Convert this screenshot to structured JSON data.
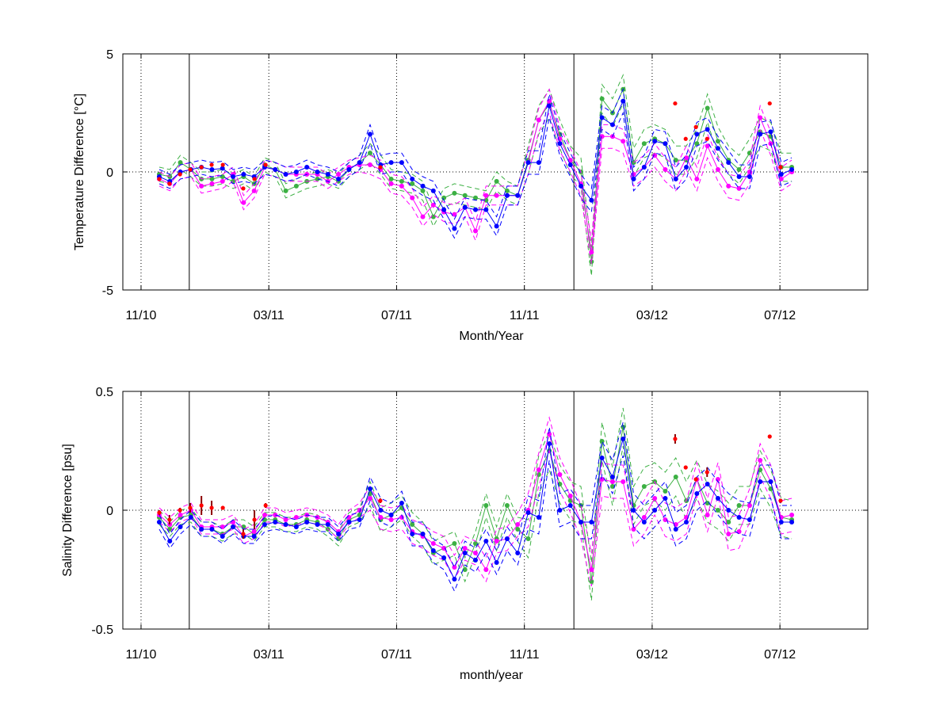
{
  "chart_data": [
    {
      "type": "line",
      "xlabel": "Month/Year",
      "ylabel": "Temperature Difference [°C]",
      "xlim": [
        -0.57,
        22.75
      ],
      "ylim": [
        -5,
        5
      ],
      "xticks": [
        {
          "value": 0,
          "label": "11/10"
        },
        {
          "value": 4,
          "label": "03/11"
        },
        {
          "value": 8,
          "label": "07/11"
        },
        {
          "value": 12,
          "label": "11/11"
        },
        {
          "value": 16,
          "label": "03/12"
        },
        {
          "value": 20,
          "label": "07/12"
        }
      ],
      "yticks": [
        -5,
        0,
        5
      ],
      "grid": true,
      "vlines": [
        1.51,
        13.55
      ],
      "x": [
        0.57,
        0.9,
        1.23,
        1.56,
        1.89,
        2.22,
        2.55,
        2.88,
        3.21,
        3.54,
        3.87,
        4.2,
        4.53,
        4.86,
        5.19,
        5.52,
        5.85,
        6.18,
        6.51,
        6.84,
        7.17,
        7.5,
        7.83,
        8.16,
        8.49,
        8.82,
        9.15,
        9.48,
        9.81,
        10.14,
        10.47,
        10.8,
        11.13,
        11.46,
        11.79,
        12.12,
        12.45,
        12.78,
        13.11,
        13.44,
        13.77,
        14.1,
        14.43,
        14.76,
        15.09,
        15.42,
        15.75,
        16.08,
        16.41,
        16.74,
        17.07,
        17.4,
        17.73,
        18.06,
        18.39,
        18.72,
        19.05,
        19.38,
        19.71,
        20.04,
        20.37
      ],
      "series": [
        {
          "color": "#3cb043",
          "values": [
            -0.1,
            -0.2,
            0.4,
            0.1,
            -0.3,
            -0.3,
            -0.2,
            -0.4,
            -0.2,
            -0.5,
            0.3,
            0.1,
            -0.8,
            -0.6,
            -0.4,
            -0.3,
            -0.2,
            -0.4,
            0.1,
            0.4,
            0.8,
            0.3,
            -0.3,
            -0.4,
            -0.5,
            -0.8,
            -1.9,
            -1.1,
            -0.9,
            -1.0,
            -1.1,
            -1.2,
            -0.4,
            -0.8,
            -1.0,
            0.5,
            2.2,
            2.9,
            1.6,
            0.5,
            0.0,
            -3.8,
            3.1,
            2.5,
            3.5,
            0.4,
            1.2,
            1.4,
            1.2,
            0.5,
            0.5,
            1.2,
            2.7,
            1.3,
            0.5,
            0.1,
            0.8,
            1.7,
            1.5,
            0.2,
            0.2
          ],
          "errors": [
            0.3,
            0.3,
            0.3,
            0.3,
            0.3,
            0.3,
            0.3,
            0.3,
            0.3,
            0.3,
            0.3,
            0.3,
            0.3,
            0.3,
            0.3,
            0.3,
            0.3,
            0.3,
            0.3,
            0.3,
            0.4,
            0.4,
            0.4,
            0.4,
            0.4,
            0.4,
            0.4,
            0.4,
            0.4,
            0.4,
            0.4,
            0.4,
            0.4,
            0.4,
            0.4,
            0.6,
            0.6,
            0.6,
            0.6,
            0.6,
            0.6,
            0.6,
            0.6,
            0.6,
            0.6,
            0.6,
            0.6,
            0.6,
            0.6,
            0.6,
            0.6,
            0.6,
            0.6,
            0.6,
            0.6,
            0.6,
            0.6,
            0.6,
            0.6,
            0.6,
            0.6
          ]
        },
        {
          "color": "#ff00ff",
          "values": [
            -0.3,
            -0.5,
            0.0,
            0.1,
            -0.6,
            -0.5,
            -0.4,
            -0.1,
            -1.3,
            -0.8,
            0.2,
            0.1,
            -0.1,
            -0.1,
            -0.1,
            -0.1,
            -0.4,
            -0.1,
            0.2,
            0.3,
            0.3,
            0.1,
            -0.5,
            -0.6,
            -1.1,
            -1.9,
            -1.4,
            -1.7,
            -1.8,
            -1.5,
            -2.5,
            -1.0,
            -1.0,
            -1.0,
            -1.0,
            0.4,
            2.2,
            3.0,
            1.4,
            0.5,
            -0.5,
            -3.4,
            1.5,
            1.5,
            1.3,
            -0.1,
            0.2,
            0.7,
            0.1,
            -0.3,
            0.6,
            -0.3,
            1.1,
            0.1,
            -0.6,
            -0.7,
            0.0,
            2.3,
            1.2,
            -0.3,
            0.0
          ],
          "errors": [
            0.3,
            0.3,
            0.3,
            0.3,
            0.3,
            0.3,
            0.3,
            0.3,
            0.3,
            0.3,
            0.3,
            0.3,
            0.3,
            0.3,
            0.3,
            0.3,
            0.3,
            0.3,
            0.3,
            0.3,
            0.4,
            0.4,
            0.4,
            0.4,
            0.4,
            0.4,
            0.4,
            0.4,
            0.4,
            0.4,
            0.4,
            0.4,
            0.4,
            0.4,
            0.4,
            0.5,
            0.5,
            0.5,
            0.5,
            0.5,
            0.5,
            0.5,
            0.5,
            0.5,
            0.5,
            0.5,
            0.5,
            0.5,
            0.5,
            0.5,
            0.5,
            0.5,
            0.5,
            0.5,
            0.5,
            0.5,
            0.5,
            0.5,
            0.5,
            0.5,
            0.5
          ]
        },
        {
          "color": "#0000ff",
          "values": [
            -0.2,
            -0.4,
            0.0,
            0.1,
            0.2,
            0.1,
            0.15,
            -0.2,
            -0.1,
            -0.2,
            0.2,
            0.1,
            -0.1,
            0.0,
            0.2,
            0.0,
            -0.1,
            -0.3,
            0.1,
            0.4,
            1.6,
            0.3,
            0.4,
            0.4,
            -0.3,
            -0.6,
            -0.8,
            -1.6,
            -2.4,
            -1.5,
            -1.6,
            -1.6,
            -2.3,
            -1.0,
            -1.0,
            0.4,
            0.4,
            2.8,
            1.2,
            0.3,
            -0.6,
            -1.2,
            2.3,
            2.0,
            3.0,
            -0.3,
            0.2,
            1.3,
            1.2,
            -0.3,
            0.2,
            1.6,
            1.8,
            1.0,
            0.4,
            -0.2,
            -0.2,
            1.6,
            1.7,
            -0.1,
            0.1
          ],
          "errors": [
            0.3,
            0.3,
            0.3,
            0.3,
            0.3,
            0.3,
            0.3,
            0.3,
            0.3,
            0.3,
            0.3,
            0.3,
            0.3,
            0.3,
            0.3,
            0.3,
            0.3,
            0.3,
            0.3,
            0.3,
            0.4,
            0.4,
            0.4,
            0.4,
            0.4,
            0.4,
            0.4,
            0.4,
            0.4,
            0.4,
            0.4,
            0.4,
            0.4,
            0.4,
            0.4,
            0.5,
            0.5,
            0.5,
            0.5,
            0.5,
            0.5,
            0.5,
            0.5,
            0.5,
            0.5,
            0.5,
            0.5,
            0.5,
            0.5,
            0.5,
            0.5,
            0.5,
            0.5,
            0.5,
            0.5,
            0.5,
            0.5,
            0.5,
            0.5,
            0.5,
            0.5
          ]
        }
      ],
      "points": {
        "color": "#ff0000",
        "x": [
          0.57,
          0.89,
          1.22,
          1.54,
          1.89,
          2.21,
          2.56,
          3.2,
          3.55,
          3.9,
          7.49,
          16.72,
          17.05,
          17.37,
          17.72,
          19.68,
          20.02
        ],
        "values": [
          -0.3,
          -0.5,
          -0.1,
          0.1,
          0.2,
          0.3,
          0.3,
          -0.7,
          -0.3,
          0.3,
          0.2,
          2.9,
          1.4,
          1.9,
          1.4,
          2.9,
          0.2
        ]
      }
    },
    {
      "type": "line",
      "xlabel": "month/year",
      "ylabel": "Salinity Difference [psu]",
      "xlim": [
        -0.57,
        22.75
      ],
      "ylim": [
        -0.5,
        0.5
      ],
      "xticks": [
        {
          "value": 0,
          "label": "11/10"
        },
        {
          "value": 4,
          "label": "03/11"
        },
        {
          "value": 8,
          "label": "07/11"
        },
        {
          "value": 12,
          "label": "11/11"
        },
        {
          "value": 16,
          "label": "03/12"
        },
        {
          "value": 20,
          "label": "07/12"
        }
      ],
      "yticks": [
        -0.5,
        0,
        0.5
      ],
      "grid": true,
      "vlines": [
        1.51,
        13.55
      ],
      "x": [
        0.57,
        0.9,
        1.23,
        1.56,
        1.89,
        2.22,
        2.55,
        2.88,
        3.21,
        3.54,
        3.87,
        4.2,
        4.53,
        4.86,
        5.19,
        5.52,
        5.85,
        6.18,
        6.51,
        6.84,
        7.17,
        7.5,
        7.83,
        8.16,
        8.49,
        8.82,
        9.15,
        9.48,
        9.81,
        10.14,
        10.47,
        10.8,
        11.13,
        11.46,
        11.79,
        12.12,
        12.45,
        12.78,
        13.11,
        13.44,
        13.77,
        14.1,
        14.43,
        14.76,
        15.09,
        15.42,
        15.75,
        16.08,
        16.41,
        16.74,
        17.07,
        17.4,
        17.73,
        18.06,
        18.39,
        18.72,
        19.05,
        19.38,
        19.71,
        20.04,
        20.37
      ],
      "series": [
        {
          "color": "#3cb043",
          "values": [
            -0.03,
            -0.08,
            -0.03,
            -0.02,
            -0.08,
            -0.08,
            -0.1,
            -0.07,
            -0.07,
            -0.1,
            -0.04,
            -0.04,
            -0.06,
            -0.06,
            -0.04,
            -0.05,
            -0.08,
            -0.12,
            -0.04,
            -0.02,
            0.07,
            -0.04,
            -0.02,
            0.01,
            -0.06,
            -0.1,
            -0.18,
            -0.16,
            -0.14,
            -0.25,
            -0.14,
            0.02,
            -0.12,
            0.02,
            -0.08,
            -0.12,
            0.15,
            0.25,
            0.11,
            0.04,
            0.02,
            -0.3,
            0.29,
            0.1,
            0.35,
            0.02,
            0.1,
            0.12,
            0.08,
            0.14,
            0.04,
            0.13,
            0.03,
            0.0,
            -0.05,
            0.02,
            0.02,
            0.17,
            0.09,
            -0.03,
            -0.04
          ],
          "errors": [
            0.03,
            0.03,
            0.03,
            0.03,
            0.03,
            0.03,
            0.03,
            0.03,
            0.03,
            0.03,
            0.03,
            0.03,
            0.03,
            0.03,
            0.03,
            0.03,
            0.03,
            0.03,
            0.03,
            0.03,
            0.05,
            0.05,
            0.05,
            0.05,
            0.05,
            0.05,
            0.05,
            0.05,
            0.05,
            0.05,
            0.05,
            0.05,
            0.05,
            0.05,
            0.05,
            0.08,
            0.08,
            0.08,
            0.08,
            0.08,
            0.08,
            0.08,
            0.08,
            0.08,
            0.08,
            0.08,
            0.08,
            0.08,
            0.08,
            0.08,
            0.08,
            0.08,
            0.08,
            0.08,
            0.08,
            0.08,
            0.08,
            0.08,
            0.08,
            0.08,
            0.08
          ]
        },
        {
          "color": "#ff00ff",
          "values": [
            -0.02,
            -0.06,
            -0.02,
            0.0,
            -0.07,
            -0.07,
            -0.07,
            -0.05,
            -0.11,
            -0.09,
            -0.02,
            -0.02,
            -0.04,
            -0.03,
            -0.02,
            -0.03,
            -0.05,
            -0.09,
            -0.03,
            0.0,
            0.05,
            -0.03,
            -0.04,
            -0.03,
            -0.09,
            -0.11,
            -0.14,
            -0.16,
            -0.24,
            -0.16,
            -0.18,
            -0.25,
            -0.13,
            -0.12,
            -0.06,
            0.0,
            0.17,
            0.32,
            0.15,
            0.06,
            -0.05,
            -0.25,
            0.13,
            0.12,
            0.12,
            -0.08,
            -0.03,
            0.05,
            -0.04,
            -0.06,
            -0.03,
            0.13,
            -0.02,
            0.13,
            -0.1,
            -0.09,
            0.02,
            0.21,
            0.12,
            -0.03,
            -0.02
          ],
          "errors": [
            0.03,
            0.03,
            0.03,
            0.03,
            0.03,
            0.03,
            0.03,
            0.03,
            0.03,
            0.03,
            0.03,
            0.03,
            0.03,
            0.03,
            0.03,
            0.03,
            0.03,
            0.03,
            0.03,
            0.03,
            0.05,
            0.05,
            0.05,
            0.05,
            0.05,
            0.05,
            0.05,
            0.05,
            0.05,
            0.05,
            0.05,
            0.05,
            0.05,
            0.05,
            0.05,
            0.07,
            0.07,
            0.07,
            0.07,
            0.07,
            0.07,
            0.07,
            0.07,
            0.07,
            0.07,
            0.07,
            0.07,
            0.07,
            0.07,
            0.07,
            0.07,
            0.07,
            0.07,
            0.07,
            0.07,
            0.07,
            0.07,
            0.07,
            0.07,
            0.07,
            0.07
          ]
        },
        {
          "color": "#0000ff",
          "values": [
            -0.05,
            -0.13,
            -0.07,
            -0.03,
            -0.08,
            -0.08,
            -0.11,
            -0.07,
            -0.11,
            -0.11,
            -0.06,
            -0.05,
            -0.06,
            -0.07,
            -0.05,
            -0.06,
            -0.06,
            -0.1,
            -0.05,
            -0.04,
            0.09,
            0.0,
            -0.02,
            0.03,
            -0.1,
            -0.1,
            -0.17,
            -0.2,
            -0.29,
            -0.18,
            -0.21,
            -0.13,
            -0.22,
            -0.12,
            -0.18,
            -0.01,
            -0.03,
            0.28,
            0.0,
            0.02,
            -0.05,
            -0.05,
            0.22,
            0.14,
            0.3,
            0.0,
            -0.05,
            0.0,
            0.05,
            -0.08,
            -0.05,
            0.07,
            0.11,
            0.05,
            0.0,
            -0.03,
            -0.04,
            0.12,
            0.12,
            -0.05,
            -0.05
          ],
          "errors": [
            0.03,
            0.03,
            0.03,
            0.03,
            0.03,
            0.03,
            0.03,
            0.03,
            0.03,
            0.03,
            0.03,
            0.03,
            0.03,
            0.03,
            0.03,
            0.03,
            0.03,
            0.03,
            0.03,
            0.03,
            0.05,
            0.05,
            0.05,
            0.05,
            0.05,
            0.05,
            0.05,
            0.05,
            0.05,
            0.05,
            0.05,
            0.05,
            0.05,
            0.05,
            0.05,
            0.07,
            0.07,
            0.07,
            0.07,
            0.07,
            0.07,
            0.07,
            0.07,
            0.07,
            0.07,
            0.07,
            0.07,
            0.07,
            0.07,
            0.07,
            0.07,
            0.07,
            0.07,
            0.07,
            0.07,
            0.07,
            0.07,
            0.07,
            0.07,
            0.07,
            0.07
          ]
        }
      ],
      "points": {
        "color": "#ff0000",
        "error_color": "#8b0000",
        "x": [
          0.57,
          0.89,
          1.22,
          1.54,
          1.89,
          2.21,
          2.56,
          3.2,
          3.55,
          3.9,
          7.49,
          16.72,
          17.05,
          17.37,
          17.72,
          19.68,
          20.02
        ],
        "values": [
          -0.01,
          -0.04,
          0.0,
          0.01,
          0.02,
          0.01,
          0.01,
          -0.1,
          -0.04,
          0.02,
          0.04,
          0.3,
          0.18,
          0.13,
          0.16,
          0.31,
          0.04
        ],
        "errors": [
          0.01,
          0.02,
          0.01,
          0.02,
          0.04,
          0.03,
          0.0,
          0.02,
          0.04,
          0.01,
          0.01,
          0.02,
          0.0,
          0.0,
          0.02,
          0.0,
          0.0
        ]
      }
    }
  ]
}
